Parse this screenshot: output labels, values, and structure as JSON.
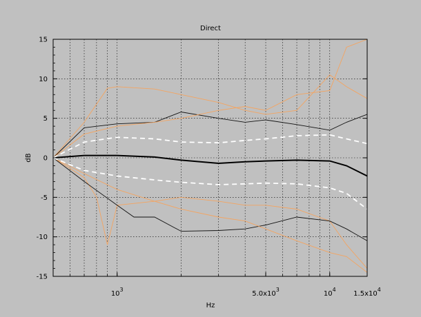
{
  "chart_data": {
    "type": "line",
    "title": "Direct",
    "xlabel": "Hz",
    "ylabel": "dB",
    "x_scale": "log",
    "xlim": [
      500,
      15000
    ],
    "ylim": [
      -15,
      15
    ],
    "grid": true,
    "x_tick_labels": [
      {
        "value": 1000,
        "base": "10",
        "exp": "3"
      },
      {
        "value": 5000,
        "base": "5.0x10",
        "exp": "3"
      },
      {
        "value": 10000,
        "base": "10",
        "exp": "4"
      },
      {
        "value": 15000,
        "base": "1.5x10",
        "exp": "4"
      }
    ],
    "y_ticks": [
      -15,
      -10,
      -5,
      0,
      5,
      10,
      15
    ],
    "colors": {
      "background": "#c0c0c0",
      "plot_bg": "#c0c0c0",
      "individual_orange": "#f4a460",
      "individual_dark": "#222222",
      "mean": "#000000",
      "spread": "#ffffff"
    },
    "series": [
      {
        "role": "mean",
        "color": "#000000",
        "x": [
          500,
          700,
          1000,
          1500,
          2000,
          3000,
          4000,
          5000,
          7000,
          10000,
          12000,
          15000
        ],
        "y": [
          0,
          0.3,
          0.3,
          0.1,
          -0.3,
          -0.7,
          -0.5,
          -0.4,
          -0.3,
          -0.4,
          -1.0,
          -2.3
        ]
      },
      {
        "role": "upper-spread",
        "color": "#ffffff",
        "dashed": true,
        "x": [
          500,
          700,
          1000,
          1500,
          2000,
          3000,
          4000,
          5000,
          7000,
          10000,
          12000,
          15000
        ],
        "y": [
          0,
          2.0,
          2.6,
          2.4,
          2.0,
          1.9,
          2.2,
          2.4,
          2.8,
          2.9,
          2.4,
          1.8
        ]
      },
      {
        "role": "lower-spread",
        "color": "#ffffff",
        "dashed": true,
        "x": [
          500,
          700,
          1000,
          1500,
          2000,
          3000,
          4000,
          5000,
          7000,
          10000,
          12000,
          15000
        ],
        "y": [
          0,
          -1.6,
          -2.3,
          -2.8,
          -3.1,
          -3.4,
          -3.3,
          -3.2,
          -3.3,
          -3.8,
          -4.5,
          -6.5
        ]
      },
      {
        "role": "individual",
        "color": "#f4a460",
        "x": [
          500,
          700,
          900,
          1000,
          1500,
          2000,
          3000,
          4000,
          5000,
          7000,
          10000,
          12000,
          15000
        ],
        "y": [
          0,
          4.5,
          8.8,
          9.0,
          8.7,
          8.0,
          7.0,
          6.0,
          5.5,
          6.0,
          10.5,
          9.0,
          7.5
        ]
      },
      {
        "role": "individual",
        "color": "#f4a460",
        "x": [
          500,
          700,
          800,
          900,
          1000,
          1500,
          2000,
          3000,
          4000,
          5000,
          7000,
          10000,
          12000,
          15000
        ],
        "y": [
          0,
          -2.5,
          -5.0,
          -11.0,
          -6.0,
          -5.5,
          -5.0,
          -5.5,
          -6.0,
          -6.0,
          -6.5,
          -8.0,
          -11.0,
          -14.0
        ]
      },
      {
        "role": "individual",
        "color": "#111111",
        "x": [
          500,
          700,
          1000,
          1200,
          1500,
          2000,
          3000,
          4000,
          5000,
          7000,
          10000,
          12000,
          15000
        ],
        "y": [
          0,
          -3.0,
          -6.0,
          -7.5,
          -7.5,
          -9.3,
          -9.2,
          -9.0,
          -8.5,
          -7.5,
          -8.0,
          -9.0,
          -10.5
        ]
      },
      {
        "role": "individual",
        "color": "#111111",
        "x": [
          500,
          700,
          1000,
          1500,
          2000,
          3000,
          4000,
          5000,
          7000,
          10000,
          12000,
          15000
        ],
        "y": [
          0,
          3.8,
          4.3,
          4.5,
          5.8,
          5.0,
          4.5,
          4.8,
          4.2,
          3.5,
          4.5,
          5.5
        ]
      },
      {
        "role": "individual",
        "color": "#f4a460",
        "x": [
          500,
          700,
          1000,
          1500,
          2000,
          3000,
          4000,
          5000,
          7000,
          10000,
          12000,
          15000
        ],
        "y": [
          0,
          3.0,
          4.0,
          4.5,
          5.0,
          6.0,
          6.5,
          6.0,
          8.0,
          8.5,
          14.0,
          15.0
        ]
      },
      {
        "role": "individual",
        "color": "#f4a460",
        "x": [
          500,
          700,
          1000,
          1500,
          2000,
          3000,
          4000,
          5000,
          7000,
          10000,
          12000,
          15000
        ],
        "y": [
          0,
          -2.0,
          -4.0,
          -5.5,
          -6.5,
          -7.5,
          -8.0,
          -9.0,
          -10.5,
          -12.0,
          -12.5,
          -14.5
        ]
      }
    ]
  }
}
